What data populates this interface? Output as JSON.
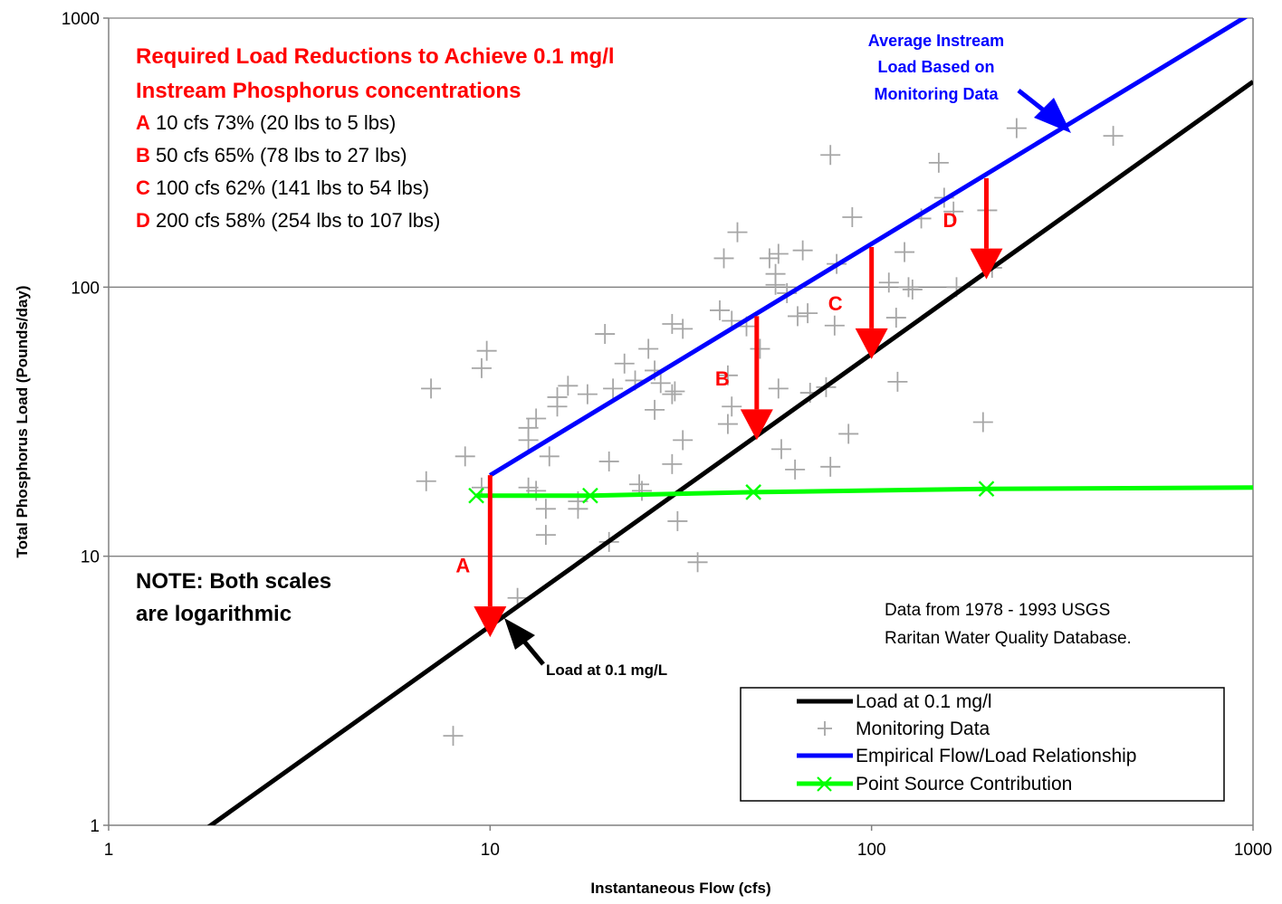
{
  "chart_data": {
    "type": "line",
    "x_scale": "log",
    "y_scale": "log",
    "xlim": [
      1,
      1000
    ],
    "ylim": [
      1,
      1000
    ],
    "grid": "horizontal",
    "xlabel": "Instantaneous Flow (cfs)",
    "ylabel": "Total Phosphorus Load (Pounds/day)",
    "x_ticks": [
      1,
      10,
      100,
      1000
    ],
    "y_ticks": [
      1,
      10,
      100,
      1000
    ],
    "x_tick_labels": [
      "1",
      "10",
      "100",
      "1000"
    ],
    "y_tick_labels": [
      "1",
      "10",
      "100",
      "1000"
    ],
    "series": [
      {
        "name": "Load at 0.1 mg/l",
        "color": "#000000",
        "type": "line",
        "x": [
          1.78,
          1000
        ],
        "y": [
          0.96,
          580
        ]
      },
      {
        "name": "Monitoring Data",
        "color": "#a6a6a6",
        "type": "scatter",
        "marker": "plus",
        "points": [
          [
            7,
            42
          ],
          [
            6.8,
            19
          ],
          [
            8.6,
            23.5
          ],
          [
            9.5,
            18
          ],
          [
            9.5,
            50
          ],
          [
            9.8,
            58
          ],
          [
            8,
            2.15
          ],
          [
            11.8,
            7
          ],
          [
            12.6,
            27
          ],
          [
            12.6,
            30
          ],
          [
            13.2,
            32.5
          ],
          [
            12.6,
            18
          ],
          [
            13.2,
            17.5
          ],
          [
            14,
            12
          ],
          [
            14,
            15
          ],
          [
            14.3,
            23.5
          ],
          [
            15,
            36
          ],
          [
            15,
            39
          ],
          [
            16,
            43
          ],
          [
            17,
            16
          ],
          [
            17,
            15
          ],
          [
            18,
            40
          ],
          [
            20.5,
            11.3
          ],
          [
            20.5,
            22.5
          ],
          [
            21,
            42
          ],
          [
            20,
            67
          ],
          [
            22.5,
            52
          ],
          [
            24,
            45
          ],
          [
            24.6,
            18.5
          ],
          [
            25,
            17.5
          ],
          [
            26,
            59
          ],
          [
            27,
            49
          ],
          [
            28,
            44
          ],
          [
            27,
            35
          ],
          [
            30,
            40
          ],
          [
            30,
            22
          ],
          [
            30,
            73
          ],
          [
            30.5,
            41
          ],
          [
            32,
            27
          ],
          [
            31,
            13.5
          ],
          [
            35,
            9.5
          ],
          [
            32,
            70
          ],
          [
            41,
            128
          ],
          [
            44.5,
            160
          ],
          [
            40,
            82
          ],
          [
            43,
            75
          ],
          [
            42,
            47
          ],
          [
            43,
            36
          ],
          [
            42,
            31
          ],
          [
            47,
            71.5
          ],
          [
            51,
            59
          ],
          [
            56,
            102
          ],
          [
            54,
            128
          ],
          [
            56,
            112
          ],
          [
            57,
            133
          ],
          [
            60,
            95
          ],
          [
            57,
            42
          ],
          [
            58,
            25
          ],
          [
            63,
            21
          ],
          [
            64,
            78
          ],
          [
            68,
            80
          ],
          [
            66,
            137
          ],
          [
            69,
            40.5
          ],
          [
            76,
            42.5
          ],
          [
            78,
            21.5
          ],
          [
            78,
            310
          ],
          [
            80,
            72
          ],
          [
            81,
            122
          ],
          [
            87,
            28.5
          ],
          [
            89,
            182
          ],
          [
            111,
            104
          ],
          [
            117,
            44.5
          ],
          [
            116,
            77
          ],
          [
            122,
            135
          ],
          [
            125,
            100
          ],
          [
            128,
            98
          ],
          [
            135,
            180
          ],
          [
            150,
            290
          ],
          [
            155,
            215
          ],
          [
            164,
            191
          ],
          [
            167,
            100
          ],
          [
            196,
            31.5
          ],
          [
            201,
            193
          ],
          [
            207,
            118
          ],
          [
            240,
            390
          ],
          [
            430,
            365
          ]
        ]
      },
      {
        "name": "Empirical Flow/Load Relationship",
        "color": "#0000ff",
        "type": "line",
        "x": [
          10,
          1000
        ],
        "y": [
          20,
          1050
        ]
      },
      {
        "name": "Point Source Contribution",
        "color": "#00ff00",
        "type": "line",
        "marker": "x",
        "x": [
          9.2,
          18.3,
          49,
          200,
          1000
        ],
        "y": [
          16.8,
          16.8,
          17.3,
          17.8,
          18.0
        ]
      }
    ],
    "reductions": [
      {
        "label": "A",
        "x": 10,
        "from": 20,
        "to": 5
      },
      {
        "label": "B",
        "x": 50,
        "from": 78,
        "to": 27
      },
      {
        "label": "C",
        "x": 100,
        "from": 141,
        "to": 54
      },
      {
        "label": "D",
        "x": 200,
        "from": 254,
        "to": 107
      }
    ],
    "legend": {
      "placement": "bottom-right"
    }
  },
  "annotations": {
    "reductions_title_1": "Required Load Reductions to Achieve 0.1 mg/l",
    "reductions_title_2": "Instream Phosphorus concentrations",
    "reduction_items": [
      {
        "letter": "A",
        "text": " 10 cfs 73% (20 lbs to 5 lbs)"
      },
      {
        "letter": "B",
        "text": " 50 cfs 65% (78 lbs to 27 lbs)"
      },
      {
        "letter": "C",
        "text": " 100 cfs 62% (141 lbs to 54 lbs)"
      },
      {
        "letter": "D",
        "text": " 200 cfs 58% (254 lbs to 107 lbs)"
      }
    ],
    "avg_instream_1": "Average Instream",
    "avg_instream_2": "Load Based on",
    "avg_instream_3": "Monitoring Data",
    "note_1": "NOTE: Both scales",
    "note_2": "are logarithmic",
    "source_1": "Data from 1978 - 1993 USGS",
    "source_2": "Raritan Water Quality Database.",
    "load_arrow_label": "Load at 0.1 mg/L"
  },
  "colors": {
    "annotation_red": "#ff0000",
    "annotation_blue": "#0000ff",
    "grid": "#808080",
    "axis": "#808080"
  }
}
